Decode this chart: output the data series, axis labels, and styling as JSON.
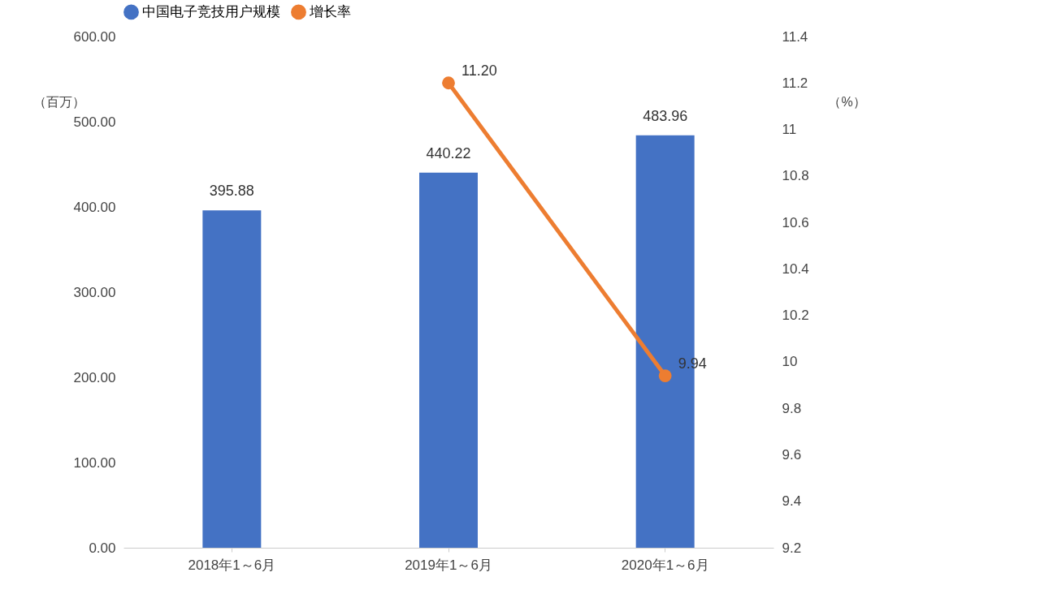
{
  "chart_data": {
    "type": "bar",
    "categories": [
      "2018年1～6月",
      "2019年1～6月",
      "2020年1～6月"
    ],
    "series": [
      {
        "name": "中国电子竞技用户规模",
        "color": "#4472c4",
        "values": [
          395.88,
          440.22,
          483.96
        ],
        "value_labels": [
          "395.88",
          "440.22",
          "483.96"
        ]
      },
      {
        "name": "增长率",
        "type": "line",
        "axis": "y2",
        "color": "#ed7d31",
        "values": [
          null,
          11.2,
          9.94
        ],
        "value_labels": [
          null,
          "11.20",
          "9.94"
        ]
      }
    ],
    "ylabel": "（百万）",
    "y2label": "（%）",
    "ylim": [
      0,
      600
    ],
    "yticks": [
      {
        "value": 0,
        "label": "0.00"
      },
      {
        "value": 100,
        "label": "100.00"
      },
      {
        "value": 200,
        "label": "200.00"
      },
      {
        "value": 300,
        "label": "300.00"
      },
      {
        "value": 400,
        "label": "400.00"
      },
      {
        "value": 500,
        "label": "500.00"
      },
      {
        "value": 600,
        "label": "600.00"
      }
    ],
    "y2lim": [
      9.2,
      11.4
    ],
    "y2ticks": [
      9.2,
      9.4,
      9.6,
      9.8,
      10,
      10.2,
      10.4,
      10.6,
      10.8,
      11,
      11.2,
      11.4
    ],
    "legend": "top",
    "marker": "circle",
    "line_style": "solid",
    "grid": false
  }
}
